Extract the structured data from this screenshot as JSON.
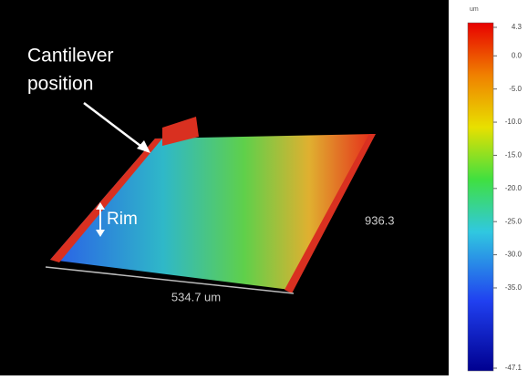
{
  "annotation": {
    "lines": [
      "Cantilever",
      "position"
    ],
    "rim": "Rim"
  },
  "axes": {
    "x_label": "534.7 um",
    "y_label": "936.3"
  },
  "colorbar": {
    "unit": "um",
    "lim": [
      -47.1,
      4.3
    ],
    "ticks": [
      4.3,
      {
        "value": 0,
        "label": "0.0"
      },
      {
        "value": -5,
        "label": "-5.0"
      },
      {
        "value": -10,
        "label": "-10.0"
      },
      {
        "value": -15,
        "label": "-15.0"
      },
      {
        "value": -20,
        "label": "-20.0"
      },
      {
        "value": -25,
        "label": "-25.0"
      },
      {
        "value": -30,
        "label": "-30.0"
      },
      {
        "value": -35,
        "label": "-35.0"
      },
      -47.1
    ]
  }
}
